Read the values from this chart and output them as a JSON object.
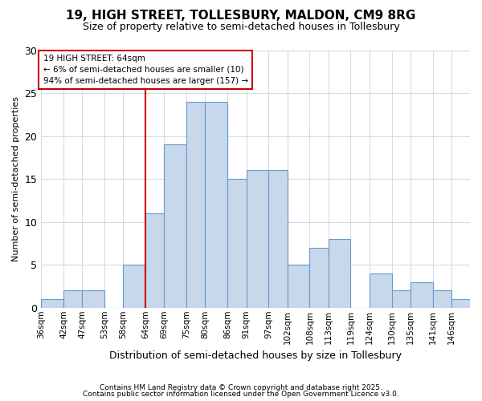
{
  "title_line1": "19, HIGH STREET, TOLLESBURY, MALDON, CM9 8RG",
  "title_line2": "Size of property relative to semi-detached houses in Tollesbury",
  "xlabel": "Distribution of semi-detached houses by size in Tollesbury",
  "ylabel": "Number of semi-detached properties",
  "footnote1": "Contains HM Land Registry data © Crown copyright and database right 2025.",
  "footnote2": "Contains public sector information licensed under the Open Government Licence v3.0.",
  "annotation_title": "19 HIGH STREET: 64sqm",
  "annotation_line2": "← 6% of semi-detached houses are smaller (10)",
  "annotation_line3": "94% of semi-detached houses are larger (157) →",
  "bin_labels": [
    "36sqm",
    "42sqm",
    "47sqm",
    "53sqm",
    "58sqm",
    "64sqm",
    "69sqm",
    "75sqm",
    "80sqm",
    "86sqm",
    "91sqm",
    "97sqm",
    "102sqm",
    "108sqm",
    "113sqm",
    "119sqm",
    "124sqm",
    "130sqm",
    "135sqm",
    "141sqm",
    "146sqm"
  ],
  "bin_edges": [
    36,
    42,
    47,
    53,
    58,
    64,
    69,
    75,
    80,
    86,
    91,
    97,
    102,
    108,
    113,
    119,
    124,
    130,
    135,
    141,
    146
  ],
  "counts": [
    1,
    2,
    2,
    0,
    5,
    11,
    19,
    24,
    24,
    15,
    16,
    16,
    5,
    7,
    8,
    0,
    4,
    2,
    3,
    2,
    1
  ],
  "highlight_bin_index": 5,
  "bar_color": "#c8d8ec",
  "bar_edge_color": "#6699cc",
  "highlight_line_color": "#cc0000",
  "annotation_box_color": "#cc0000",
  "ylim": [
    0,
    30
  ],
  "yticks": [
    0,
    5,
    10,
    15,
    20,
    25,
    30
  ],
  "background_color": "#ffffff",
  "grid_color": "#d0dce8",
  "title_fontsize": 11,
  "subtitle_fontsize": 9
}
